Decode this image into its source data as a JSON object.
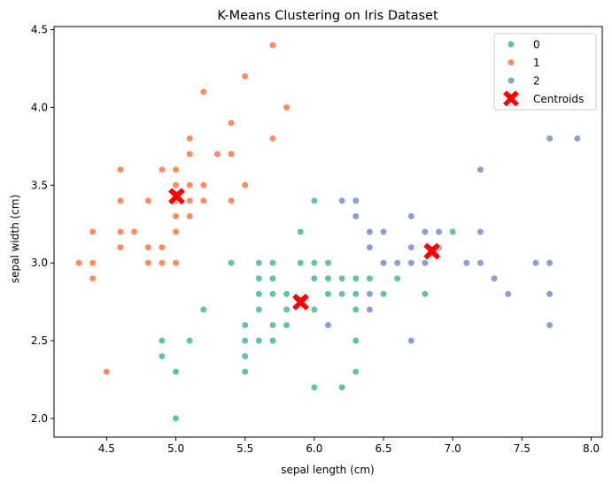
{
  "chart_data": {
    "type": "scatter",
    "title": "K-Means Clustering on Iris Dataset",
    "xlabel": "sepal length (cm)",
    "ylabel": "sepal width (cm)",
    "xlim": [
      4.12,
      8.08
    ],
    "ylim": [
      1.88,
      4.52
    ],
    "xticks": [
      {
        "value": 4.5,
        "label": "4.5"
      },
      {
        "value": 5.0,
        "label": "5.0"
      },
      {
        "value": 5.5,
        "label": "5.5"
      },
      {
        "value": 6.0,
        "label": "6.0"
      },
      {
        "value": 6.5,
        "label": "6.5"
      },
      {
        "value": 7.0,
        "label": "7.0"
      },
      {
        "value": 7.5,
        "label": "7.5"
      },
      {
        "value": 8.0,
        "label": "8.0"
      }
    ],
    "yticks": [
      {
        "value": 2.0,
        "label": "2.0"
      },
      {
        "value": 2.5,
        "label": "2.5"
      },
      {
        "value": 3.0,
        "label": "3.0"
      },
      {
        "value": 3.5,
        "label": "3.5"
      },
      {
        "value": 4.0,
        "label": "4.0"
      },
      {
        "value": 4.5,
        "label": "4.5"
      }
    ],
    "grid": false,
    "legend_position": "top-right",
    "series": [
      {
        "name": "0",
        "color": "#66c2a5",
        "points": [
          [
            4.9,
            2.5
          ],
          [
            4.9,
            2.4
          ],
          [
            5.0,
            2.3
          ],
          [
            5.0,
            2.0
          ],
          [
            5.1,
            2.5
          ],
          [
            5.2,
            2.7
          ],
          [
            5.4,
            3.0
          ],
          [
            5.5,
            2.6
          ],
          [
            5.5,
            2.5
          ],
          [
            5.5,
            2.4
          ],
          [
            5.5,
            2.3
          ],
          [
            5.6,
            3.0
          ],
          [
            5.6,
            2.9
          ],
          [
            5.6,
            2.8
          ],
          [
            5.6,
            2.7
          ],
          [
            5.6,
            2.5
          ],
          [
            5.7,
            3.0
          ],
          [
            5.7,
            2.9
          ],
          [
            5.7,
            2.8
          ],
          [
            5.7,
            2.6
          ],
          [
            5.7,
            2.5
          ],
          [
            5.8,
            2.8
          ],
          [
            5.8,
            2.7
          ],
          [
            5.8,
            2.6
          ],
          [
            5.9,
            3.2
          ],
          [
            5.9,
            3.0
          ],
          [
            6.0,
            3.4
          ],
          [
            6.0,
            3.0
          ],
          [
            6.0,
            2.9
          ],
          [
            6.0,
            2.7
          ],
          [
            6.0,
            2.2
          ],
          [
            6.1,
            3.0
          ],
          [
            6.1,
            2.9
          ],
          [
            6.1,
            2.8
          ],
          [
            6.2,
            2.9
          ],
          [
            6.2,
            2.8
          ],
          [
            6.2,
            2.2
          ],
          [
            6.3,
            2.9
          ],
          [
            6.3,
            2.8
          ],
          [
            6.3,
            2.7
          ],
          [
            6.3,
            2.5
          ],
          [
            6.3,
            2.3
          ],
          [
            6.4,
            2.9
          ],
          [
            6.5,
            2.8
          ],
          [
            6.6,
            3.0
          ],
          [
            6.6,
            2.9
          ],
          [
            6.8,
            2.8
          ],
          [
            7.0,
            3.2
          ]
        ]
      },
      {
        "name": "1",
        "color": "#fc8d62",
        "points": [
          [
            4.3,
            3.0
          ],
          [
            4.4,
            3.2
          ],
          [
            4.4,
            3.0
          ],
          [
            4.4,
            2.9
          ],
          [
            4.5,
            2.3
          ],
          [
            4.6,
            3.6
          ],
          [
            4.6,
            3.4
          ],
          [
            4.6,
            3.2
          ],
          [
            4.6,
            3.1
          ],
          [
            4.7,
            3.2
          ],
          [
            4.8,
            3.4
          ],
          [
            4.8,
            3.1
          ],
          [
            4.8,
            3.0
          ],
          [
            4.9,
            3.6
          ],
          [
            4.9,
            3.1
          ],
          [
            4.9,
            3.0
          ],
          [
            5.0,
            3.6
          ],
          [
            5.0,
            3.5
          ],
          [
            5.0,
            3.4
          ],
          [
            5.0,
            3.3
          ],
          [
            5.0,
            3.2
          ],
          [
            5.0,
            3.0
          ],
          [
            5.1,
            3.8
          ],
          [
            5.1,
            3.7
          ],
          [
            5.1,
            3.5
          ],
          [
            5.1,
            3.4
          ],
          [
            5.1,
            3.3
          ],
          [
            5.2,
            4.1
          ],
          [
            5.2,
            3.5
          ],
          [
            5.2,
            3.4
          ],
          [
            5.3,
            3.7
          ],
          [
            5.4,
            3.9
          ],
          [
            5.4,
            3.7
          ],
          [
            5.4,
            3.4
          ],
          [
            5.5,
            4.2
          ],
          [
            5.5,
            3.5
          ],
          [
            5.7,
            4.4
          ],
          [
            5.7,
            3.8
          ],
          [
            5.8,
            4.0
          ]
        ]
      },
      {
        "name": "2",
        "color": "#8da0cb",
        "points": [
          [
            6.1,
            2.6
          ],
          [
            6.2,
            3.4
          ],
          [
            6.3,
            3.4
          ],
          [
            6.3,
            3.3
          ],
          [
            6.4,
            3.2
          ],
          [
            6.4,
            3.1
          ],
          [
            6.4,
            2.8
          ],
          [
            6.4,
            2.7
          ],
          [
            6.5,
            3.2
          ],
          [
            6.5,
            3.0
          ],
          [
            6.6,
            3.0
          ],
          [
            6.7,
            3.3
          ],
          [
            6.7,
            3.1
          ],
          [
            6.7,
            3.0
          ],
          [
            6.7,
            2.5
          ],
          [
            6.8,
            3.2
          ],
          [
            6.8,
            3.0
          ],
          [
            6.9,
            3.2
          ],
          [
            6.9,
            3.1
          ],
          [
            7.1,
            3.0
          ],
          [
            7.2,
            3.6
          ],
          [
            7.2,
            3.2
          ],
          [
            7.2,
            3.0
          ],
          [
            7.3,
            2.9
          ],
          [
            7.4,
            2.8
          ],
          [
            7.6,
            3.0
          ],
          [
            7.7,
            3.8
          ],
          [
            7.7,
            3.0
          ],
          [
            7.7,
            2.8
          ],
          [
            7.7,
            2.6
          ],
          [
            7.9,
            3.8
          ]
        ]
      }
    ],
    "centroids": {
      "name": "Centroids",
      "color": "#ff0000",
      "marker": "X",
      "points": [
        [
          5.006,
          3.428
        ],
        [
          5.902,
          2.748
        ],
        [
          6.85,
          3.074
        ]
      ]
    }
  }
}
